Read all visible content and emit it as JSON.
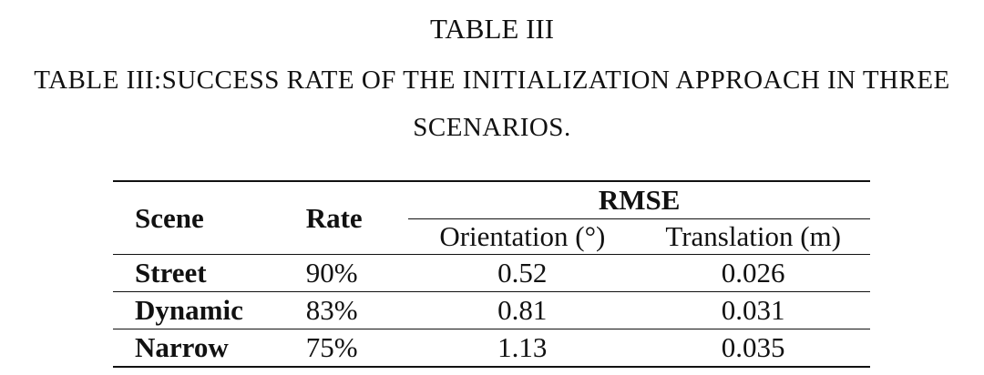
{
  "table": {
    "label": "TABLE III",
    "caption": "TABLE III:SUCCESS RATE OF THE INITIALIZATION APPROACH IN THREE SCENARIOS.",
    "headers": {
      "scene": "Scene",
      "rate": "Rate",
      "rmse": "RMSE",
      "orientation": "Orientation (°)",
      "translation": "Translation (m)"
    },
    "rows": [
      {
        "scene": "Street",
        "rate": "90%",
        "orientation": "0.52",
        "translation": "0.026"
      },
      {
        "scene": "Dynamic",
        "rate": "83%",
        "orientation": "0.81",
        "translation": "0.031"
      },
      {
        "scene": "Narrow",
        "rate": "75%",
        "orientation": "1.13",
        "translation": "0.035"
      }
    ]
  }
}
